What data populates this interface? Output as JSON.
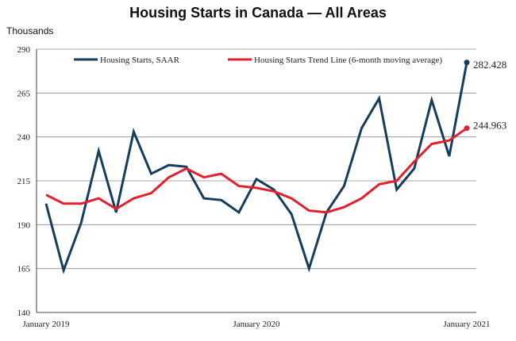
{
  "chart_data": {
    "type": "line",
    "title": "Housing Starts in Canada — All Areas",
    "ylabel": "Thousands",
    "xlabel": "",
    "ylim": [
      140,
      290
    ],
    "yticks": [
      "290",
      "265",
      "240",
      "215",
      "190",
      "165",
      "140"
    ],
    "xtick_labels": [
      {
        "index": 0,
        "label": "January 2019"
      },
      {
        "index": 12,
        "label": "January 2020"
      },
      {
        "index": 24,
        "label": "January 2021"
      }
    ],
    "grid": true,
    "legend_position": "top",
    "series": [
      {
        "name": "Housing Starts, SAAR",
        "color": "#163d5c",
        "values": [
          202,
          164,
          191,
          232,
          197,
          243,
          219,
          224,
          223,
          205,
          204,
          197,
          216,
          210,
          196,
          165,
          197,
          212,
          245,
          262,
          210,
          222,
          261,
          229,
          282.428
        ]
      },
      {
        "name": "Housing Starts Trend Line (6-month moving average)",
        "color": "#e3202e",
        "values": [
          207,
          202,
          202,
          205,
          199,
          205,
          208,
          217,
          222,
          217,
          219,
          212,
          211,
          209,
          205,
          198,
          197,
          200,
          205,
          213,
          215,
          226,
          236,
          238,
          244.963
        ]
      }
    ],
    "end_labels": [
      "282.428",
      "244.963"
    ]
  }
}
